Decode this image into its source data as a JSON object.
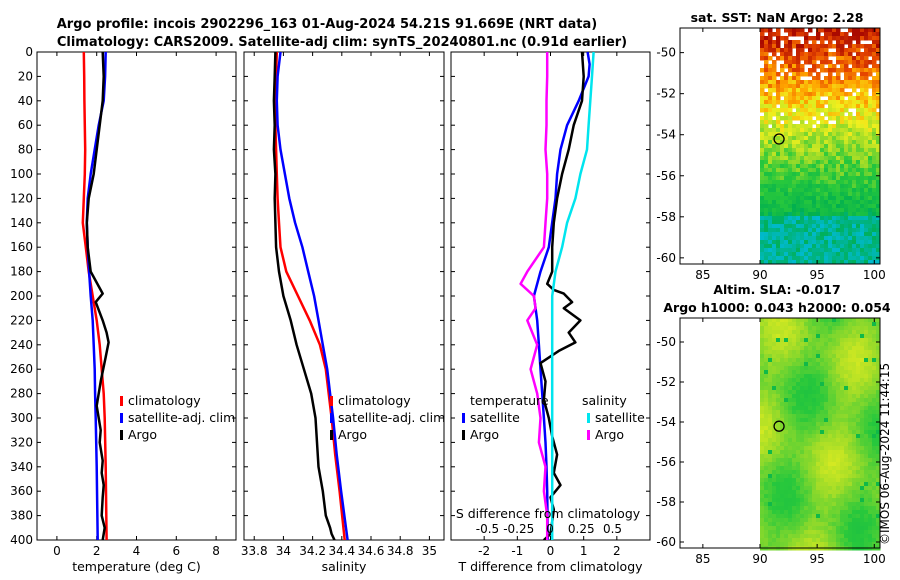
{
  "title_line1": "Argo profile: incois 2902296_163 01-Aug-2024 54.21S 91.669E (NRT data)",
  "title_line2": "Climatology: CARS2009. Satellite-adj clim: synTS_20240801.nc (0.91d earlier)",
  "watermark": "©IMOS 06-Aug-2024 11:44:15",
  "colors": {
    "climatology": "#ff0000",
    "satellite": "#0000ff",
    "argo": "#000000",
    "sal_satellite": "#00e5ee",
    "sal_argo": "#ff00ff"
  },
  "chart_data": [
    {
      "type": "line",
      "id": "temperature",
      "xlabel": "temperature (deg C)",
      "ylabel": "",
      "xlim": [
        -1,
        9
      ],
      "ylim": [
        400,
        0
      ],
      "xticks": [
        0,
        2,
        4,
        6,
        8
      ],
      "xtick_labels": [
        "0",
        "2",
        "4",
        "6",
        "8"
      ],
      "yticks": [
        0,
        20,
        40,
        60,
        80,
        100,
        120,
        140,
        160,
        180,
        200,
        220,
        240,
        260,
        280,
        300,
        320,
        340,
        360,
        380,
        400
      ],
      "legend": [
        "climatology",
        "satellite-adj. clim",
        "Argo"
      ],
      "series": [
        {
          "name": "climatology",
          "color": "#ff0000",
          "width": 2.5,
          "x": [
            1.35,
            1.37,
            1.38,
            1.4,
            1.42,
            1.4,
            1.35,
            1.3,
            1.45,
            1.6,
            1.8,
            2.0,
            2.15,
            2.25,
            2.35,
            2.4,
            2.45,
            2.5
          ],
          "y": [
            0,
            20,
            40,
            60,
            80,
            100,
            120,
            140,
            160,
            180,
            200,
            220,
            240,
            260,
            280,
            300,
            340,
            400
          ]
        },
        {
          "name": "satellite-adj. clim",
          "color": "#0000ff",
          "width": 2.5,
          "x": [
            2.45,
            2.42,
            2.35,
            2.1,
            1.9,
            1.7,
            1.55,
            1.5,
            1.55,
            1.62,
            1.7,
            1.8,
            1.85,
            1.9,
            1.92,
            1.95,
            2.0,
            2.05
          ],
          "y": [
            0,
            20,
            40,
            60,
            80,
            100,
            120,
            140,
            160,
            180,
            200,
            220,
            240,
            260,
            280,
            300,
            340,
            400
          ]
        },
        {
          "name": "Argo",
          "color": "#000000",
          "width": 2.5,
          "x": [
            2.3,
            2.35,
            2.3,
            2.15,
            2.0,
            1.85,
            1.6,
            1.5,
            1.55,
            1.7,
            2.3,
            1.95,
            2.3,
            2.5,
            2.6,
            2.45,
            2.2,
            2.0,
            2.1,
            2.2,
            2.15,
            2.3,
            2.25,
            2.35,
            2.3,
            2.25,
            2.4,
            2.3
          ],
          "y": [
            0,
            20,
            40,
            60,
            80,
            100,
            120,
            140,
            160,
            180,
            198,
            205,
            220,
            230,
            238,
            250,
            270,
            290,
            300,
            310,
            320,
            335,
            345,
            355,
            365,
            380,
            390,
            400
          ]
        }
      ]
    },
    {
      "type": "line",
      "id": "salinity",
      "xlabel": "salinity",
      "ylabel": "",
      "xlim": [
        33.73,
        35.1
      ],
      "ylim": [
        400,
        0
      ],
      "xticks": [
        33.8,
        34,
        34.2,
        34.4,
        34.6,
        34.8,
        35
      ],
      "xtick_labels": [
        "33.8",
        "34",
        "34.2",
        "34.4",
        "34.6",
        "34.8",
        "35"
      ],
      "legend": [
        "climatology",
        "satellite-adj. clim",
        "Argo"
      ],
      "series": [
        {
          "name": "climatology",
          "color": "#ff0000",
          "width": 2.5,
          "x": [
            33.955,
            33.95,
            33.945,
            33.945,
            33.95,
            33.955,
            33.96,
            33.97,
            33.98,
            34.02,
            34.1,
            34.18,
            34.25,
            34.29,
            34.31,
            34.33,
            34.355,
            34.385,
            34.42
          ],
          "y": [
            0,
            20,
            40,
            60,
            80,
            100,
            120,
            140,
            160,
            180,
            200,
            220,
            240,
            260,
            280,
            300,
            330,
            360,
            400
          ]
        },
        {
          "name": "satellite-adj. clim",
          "color": "#0000ff",
          "width": 2.5,
          "x": [
            33.98,
            33.96,
            33.955,
            33.96,
            33.98,
            34.01,
            34.04,
            34.08,
            34.13,
            34.17,
            34.21,
            34.24,
            34.27,
            34.3,
            34.32,
            34.34,
            34.365,
            34.395,
            34.44
          ],
          "y": [
            0,
            20,
            40,
            60,
            80,
            100,
            120,
            140,
            160,
            180,
            200,
            220,
            240,
            260,
            280,
            300,
            330,
            360,
            400
          ]
        },
        {
          "name": "Argo",
          "color": "#000000",
          "width": 2.5,
          "x": [
            33.945,
            33.94,
            33.935,
            33.94,
            33.935,
            33.945,
            33.94,
            33.945,
            33.95,
            33.97,
            34.0,
            34.05,
            34.09,
            34.14,
            34.19,
            34.22,
            34.23,
            34.24,
            34.27,
            34.29,
            34.32,
            34.33,
            34.35
          ],
          "y": [
            0,
            20,
            40,
            60,
            80,
            100,
            120,
            140,
            160,
            180,
            200,
            220,
            240,
            260,
            280,
            300,
            320,
            340,
            360,
            380,
            390,
            395,
            400
          ]
        }
      ]
    },
    {
      "type": "line",
      "id": "difference",
      "xlabel": "T difference from climatology",
      "top_label": "S difference from climatology",
      "xlim": [
        -3,
        3
      ],
      "ylim": [
        400,
        0
      ],
      "xticks": [
        -2,
        -1,
        0,
        1,
        2
      ],
      "xtick_labels": [
        "-2",
        "-1",
        "0",
        "1",
        "2"
      ],
      "sticks": [
        -0.5,
        -0.25,
        0,
        0.25,
        0.5
      ],
      "stick_labels": [
        "-0.5",
        "-0.25",
        "0",
        "0.25",
        "0.5"
      ],
      "legend_left_title": "temperature",
      "legend_right_title": "salinity",
      "legend_left": [
        "satellite",
        "Argo"
      ],
      "legend_right": [
        "satellite",
        "Argo"
      ],
      "series": [
        {
          "name": "T satellite",
          "color": "#0000ff",
          "width": 2.5,
          "x": [
            1.12,
            1.18,
            1.15,
            0.85,
            0.5,
            0.3,
            0.2,
            0.15,
            -0.05,
            -0.3,
            -0.5,
            -0.4,
            -0.35,
            -0.3,
            -0.25,
            -0.2,
            -0.15,
            -0.12,
            -0.1,
            -0.08
          ],
          "y": [
            0,
            10,
            20,
            40,
            60,
            80,
            100,
            120,
            160,
            180,
            200,
            220,
            240,
            260,
            280,
            300,
            320,
            340,
            360,
            400
          ]
        },
        {
          "name": "T Argo",
          "color": "#000000",
          "width": 2.5,
          "x": [
            0.95,
            1.0,
            0.95,
            0.7,
            0.55,
            0.35,
            0.2,
            0.1,
            0.05,
            0.05,
            -0.1,
            0.1,
            0.4,
            0.65,
            0.4,
            0.9,
            0.55,
            0.75,
            0.25,
            -0.3,
            -0.15,
            -0.2,
            -0.05,
            0.05,
            0.2,
            0.1,
            0.3,
            0.0,
            0.1,
            0.05,
            0.0,
            -0.2
          ],
          "y": [
            0,
            20,
            40,
            60,
            80,
            100,
            120,
            140,
            160,
            180,
            190,
            195,
            198,
            205,
            210,
            220,
            230,
            238,
            245,
            255,
            270,
            285,
            300,
            315,
            330,
            345,
            355,
            365,
            375,
            385,
            395,
            400
          ]
        },
        {
          "name": "S satellite",
          "color": "#00e5ee",
          "width": 2.5,
          "x": [
            1.3,
            1.25,
            1.2,
            1.15,
            1.1,
            0.9,
            0.75,
            0.5,
            0.35,
            0.15,
            0.05,
            0.05,
            0.05,
            0.05,
            0.05,
            0.05,
            0.05,
            0.05
          ],
          "y": [
            0,
            20,
            40,
            60,
            80,
            100,
            120,
            140,
            160,
            180,
            200,
            220,
            260,
            300,
            320,
            340,
            370,
            400
          ]
        },
        {
          "name": "S Argo",
          "color": "#ff00ff",
          "width": 2.5,
          "x": [
            -0.1,
            -0.1,
            -0.12,
            -0.12,
            -0.15,
            -0.1,
            -0.1,
            -0.15,
            -0.2,
            -0.7,
            -0.9,
            -0.5,
            -0.45,
            -0.7,
            -0.4,
            -0.6,
            -0.4,
            -0.3,
            -0.35,
            -0.15,
            -0.2,
            -0.1,
            -0.1
          ],
          "y": [
            0,
            20,
            40,
            60,
            80,
            100,
            120,
            140,
            160,
            180,
            190,
            200,
            210,
            220,
            240,
            260,
            280,
            300,
            320,
            340,
            360,
            380,
            400
          ]
        }
      ]
    },
    {
      "type": "heatmap",
      "id": "sst_map",
      "title": "sat. SST: NaN Argo: 2.28",
      "xlim": [
        83,
        100.5
      ],
      "ylim": [
        -60.3,
        -48.8
      ],
      "xticks": [
        85,
        90,
        95,
        100
      ],
      "xtick_labels": [
        "85",
        "90",
        "95",
        "100"
      ],
      "yticks": [
        -50,
        -52,
        -54,
        -56,
        -58,
        -60
      ],
      "ytick_labels": [
        "-50",
        "-52",
        "-54",
        "-56",
        "-58",
        "-60"
      ],
      "data_lon_range": [
        90,
        100.5
      ],
      "data_lat_range": [
        -60.3,
        -48.8
      ],
      "argo_position": {
        "lon": 91.669,
        "lat": -54.21
      }
    },
    {
      "type": "heatmap",
      "id": "sla_map",
      "title": "Altim. SLA: -0.017",
      "subtitle": "Argo h1000: 0.043 h2000: 0.054",
      "xlim": [
        83,
        100.5
      ],
      "ylim": [
        -60.3,
        -48.8
      ],
      "xticks": [
        85,
        90,
        95,
        100
      ],
      "xtick_labels": [
        "85",
        "90",
        "95",
        "100"
      ],
      "yticks": [
        -50,
        -52,
        -54,
        -56,
        -58,
        -60
      ],
      "ytick_labels": [
        "-50",
        "-52",
        "-54",
        "-56",
        "-58",
        "-60"
      ],
      "data_lon_range": [
        90,
        100.5
      ],
      "data_lat_range": [
        -60.3,
        -48.8
      ],
      "argo_position": {
        "lon": 91.669,
        "lat": -54.21
      }
    }
  ]
}
